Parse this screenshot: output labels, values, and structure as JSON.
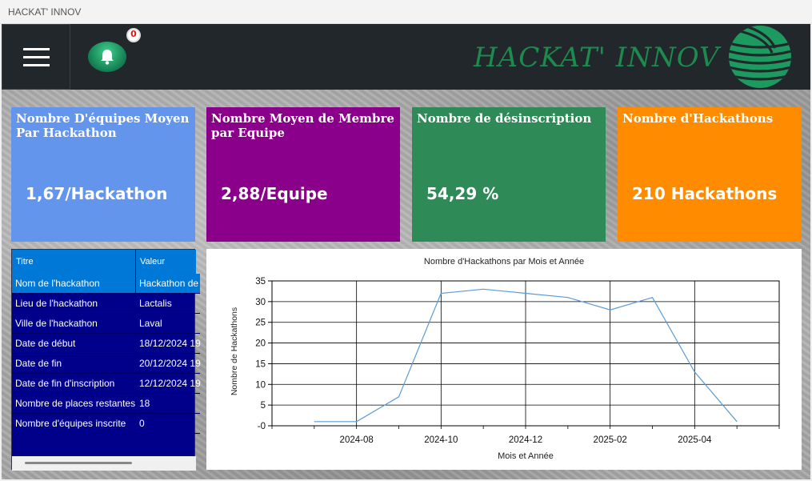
{
  "window": {
    "title": "HACKAT' INNOV"
  },
  "header": {
    "brand": "HACKAT' INNOV",
    "notifications_count": "0",
    "accent_color": "#1d8a4e"
  },
  "cards": [
    {
      "label": "Nombre D'équipes Moyen Par Hackathon",
      "value": "1,67/Hackathon",
      "color": "#6495ed"
    },
    {
      "label": "Nombre Moyen de Membre par Equipe",
      "value": "2,88/Equipe",
      "color": "#8b008b"
    },
    {
      "label": "Nombre de désinscription",
      "value": "54,29 %",
      "color": "#2e8b57"
    },
    {
      "label": "Nombre d'Hackathons",
      "value": "210 Hackathons",
      "color": "#ff8c00"
    }
  ],
  "grid": {
    "headers": {
      "title": "Titre",
      "value": "Valeur"
    },
    "rows": [
      {
        "title": "Nom de l'hackathon",
        "value": "Hackathon de"
      },
      {
        "title": "Lieu de l'hackathon",
        "value": "Lactalis"
      },
      {
        "title": "Ville de l'hackathon",
        "value": "Laval"
      },
      {
        "title": "Date de début",
        "value": "18/12/2024 19"
      },
      {
        "title": "Date de fin",
        "value": "20/12/2024 19"
      },
      {
        "title": "Date de fin d'inscription",
        "value": "12/12/2024 19"
      },
      {
        "title": "Nombre de places restantes",
        "value": "18"
      },
      {
        "title": "Nombre d'équipes inscrite",
        "value": "0"
      }
    ]
  },
  "chart_data": {
    "type": "line",
    "title": "Nombre d'Hackathons par Mois et Année",
    "xlabel": "Mois et Année",
    "ylabel": "Nombre de Hackathons",
    "x": [
      "2024-07",
      "2024-08",
      "2024-09",
      "2024-10",
      "2024-11",
      "2024-12",
      "2025-01",
      "2025-02",
      "2025-03",
      "2025-04",
      "2025-05"
    ],
    "values": [
      1,
      1,
      7,
      32,
      33,
      32,
      31,
      28,
      31,
      13,
      1
    ],
    "x_tick_labels": [
      "2024-08",
      "2024-10",
      "2024-12",
      "2025-02",
      "2025-04"
    ],
    "y_tick_labels": [
      "35",
      "30",
      "25",
      "20",
      "15",
      "10",
      "5",
      "-0"
    ],
    "ylim": [
      0,
      35
    ],
    "grid": true,
    "legend": "none",
    "line_color": "#5b9bd5"
  }
}
